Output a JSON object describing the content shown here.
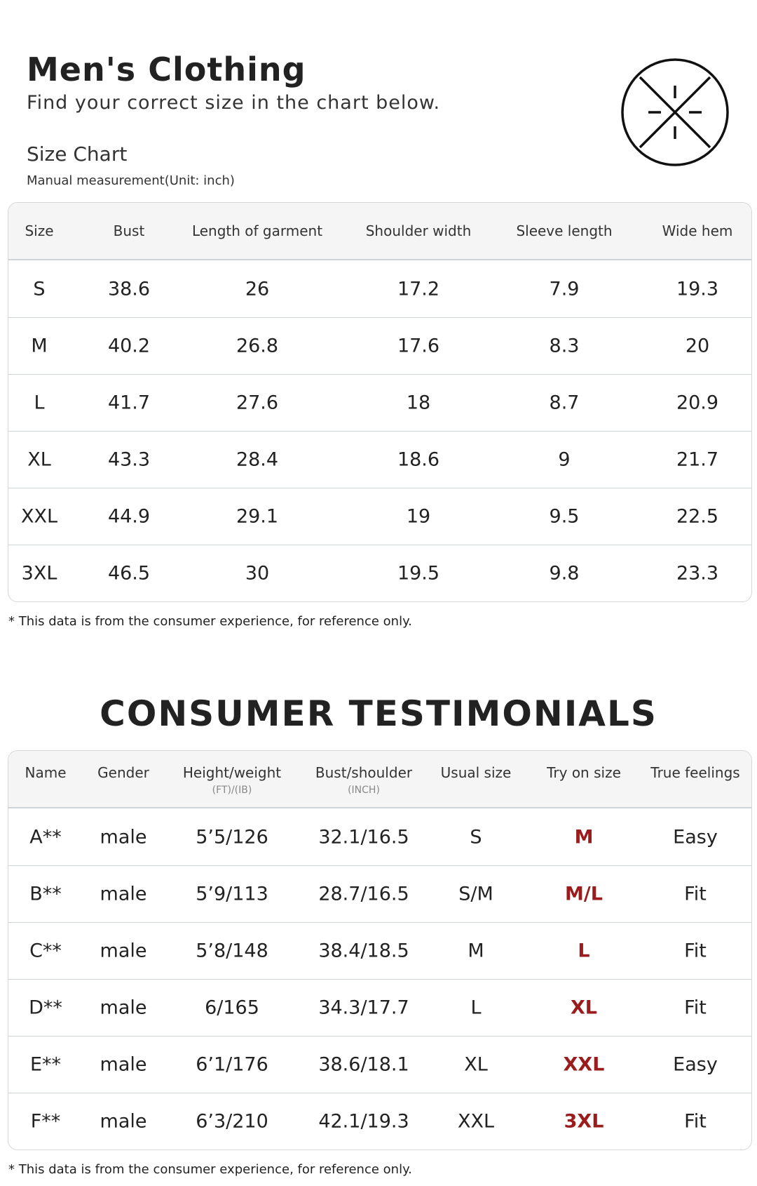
{
  "header": {
    "title": "Men's Clothing",
    "subtitle": "Find your correct size in the chart below."
  },
  "size_chart": {
    "title": "Size Chart",
    "note": "Manual measurement(Unit: inch)",
    "columns": [
      "Size",
      "Bust",
      "Length of garment",
      "Shoulder width",
      "Sleeve length",
      "Wide hem"
    ],
    "rows": [
      [
        "S",
        "38.6",
        "26",
        "17.2",
        "7.9",
        "19.3"
      ],
      [
        "M",
        "40.2",
        "26.8",
        "17.6",
        "8.3",
        "20"
      ],
      [
        "L",
        "41.7",
        "27.6",
        "18",
        "8.7",
        "20.9"
      ],
      [
        "XL",
        "43.3",
        "28.4",
        "18.6",
        "9",
        "21.7"
      ],
      [
        "XXL",
        "44.9",
        "29.1",
        "19",
        "9.5",
        "22.5"
      ],
      [
        "3XL",
        "46.5",
        "30",
        "19.5",
        "9.8",
        "23.3"
      ]
    ],
    "footnote": "* This data is from the consumer experience, for reference only."
  },
  "testimonials": {
    "title": "CONSUMER TESTIMONIALS",
    "columns": [
      {
        "label": "Name"
      },
      {
        "label": "Gender"
      },
      {
        "label": "Height/weight",
        "sub": "(FT)/(IB)"
      },
      {
        "label": "Bust/shoulder",
        "sub": "(INCH)"
      },
      {
        "label": "Usual size"
      },
      {
        "label": "Try on size"
      },
      {
        "label": "True feelings"
      }
    ],
    "rows": [
      [
        "A**",
        "male",
        "5’5/126",
        "32.1/16.5",
        "S",
        "M",
        "Easy"
      ],
      [
        "B**",
        "male",
        "5’9/113",
        "28.7/16.5",
        "S/M",
        "M/L",
        "Fit"
      ],
      [
        "C**",
        "male",
        "5’8/148",
        "38.4/18.5",
        "M",
        "L",
        "Fit"
      ],
      [
        "D**",
        "male",
        "6/165",
        "34.3/17.7",
        "L",
        "XL",
        "Fit"
      ],
      [
        "E**",
        "male",
        "6’1/176",
        "38.6/18.1",
        "XL",
        "XXL",
        "Easy"
      ],
      [
        "F**",
        "male",
        "6’3/210",
        "42.1/19.3",
        "XXL",
        "3XL",
        "Fit"
      ]
    ],
    "footnote": "* This data is from the consumer experience, for reference only."
  }
}
